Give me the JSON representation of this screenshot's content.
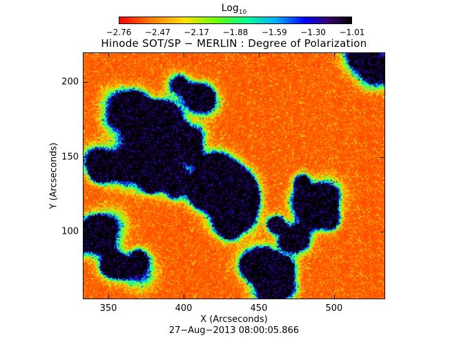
{
  "colorbar": {
    "title_base": "Log",
    "title_sub": "10",
    "tick_labels": [
      "−2.76",
      "−2.47",
      "−2.17",
      "−1.88",
      "−1.59",
      "−1.30",
      "−1.01"
    ]
  },
  "title": "Hinode SOT/SP − MERLIN : Degree of Polarization",
  "xlabel": "X (Arcseconds)",
  "ylabel": "Y (Arcseconds)",
  "timestamp": "27−Aug−2013 08:00:05.866",
  "x_ticks": [
    "350",
    "400",
    "450",
    "500"
  ],
  "y_ticks": [
    "100",
    "150",
    "200"
  ],
  "colors": {
    "low": "#ff0000",
    "mid_low": "#ff8000",
    "mid": "#ffe000",
    "green": "#66ff33",
    "cyan": "#00ffcc",
    "blue": "#0000ff",
    "high": "#000000"
  },
  "chart_data": {
    "type": "heatmap",
    "title": "Hinode SOT/SP − MERLIN : Degree of Polarization",
    "xlabel": "X (Arcseconds)",
    "ylabel": "Y (Arcseconds)",
    "xlim": [
      333,
      534
    ],
    "ylim": [
      55,
      220
    ],
    "color_scale": "log10",
    "zlim": [
      -2.76,
      -1.01
    ],
    "colorbar_ticks": [
      -2.76,
      -2.47,
      -2.17,
      -1.88,
      -1.59,
      -1.3,
      -1.01
    ],
    "x_ticks": [
      350,
      400,
      450,
      500
    ],
    "y_ticks": [
      100,
      150,
      200
    ]
  }
}
